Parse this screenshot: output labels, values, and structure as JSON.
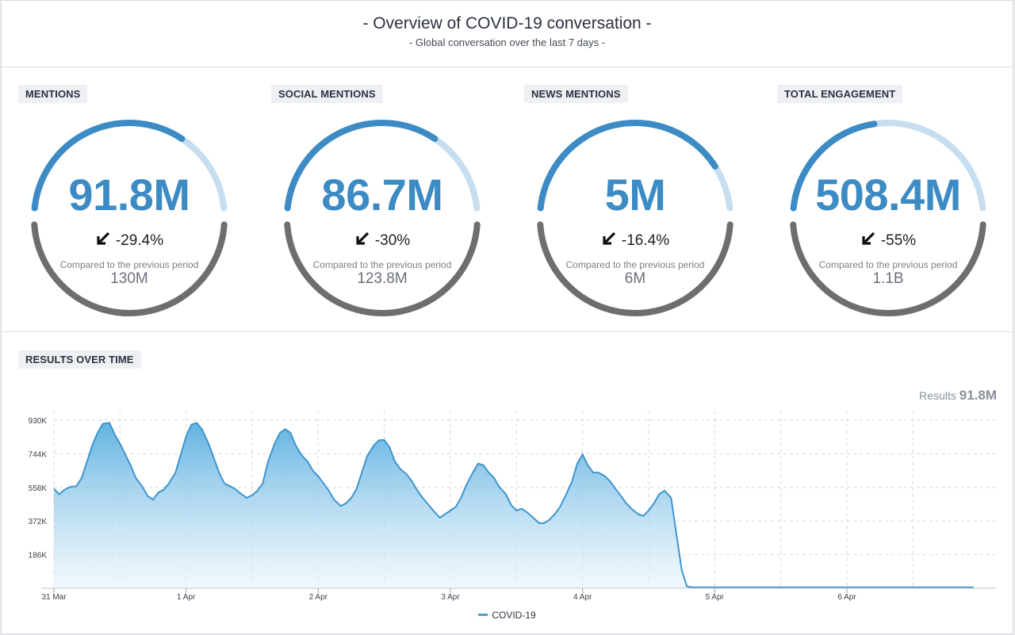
{
  "header": {
    "title": "- Overview of COVID-19 conversation -",
    "subtitle": "- Global conversation over the last 7 days -"
  },
  "kpis": [
    {
      "label": "MENTIONS",
      "value": "91.8M",
      "change": "-29.4%",
      "compare_label": "Compared to the previous period",
      "previous": "130M",
      "fill_fraction": 0.7
    },
    {
      "label": "SOCIAL MENTIONS",
      "value": "86.7M",
      "change": "-30%",
      "compare_label": "Compared to the previous period",
      "previous": "123.8M",
      "fill_fraction": 0.7
    },
    {
      "label": "NEWS MENTIONS",
      "value": "5M",
      "change": "-16.4%",
      "compare_label": "Compared to the previous period",
      "previous": "6M",
      "fill_fraction": 0.84
    },
    {
      "label": "TOTAL ENGAGEMENT",
      "value": "508.4M",
      "change": "-55%",
      "compare_label": "Compared to the previous period",
      "previous": "1.1B",
      "fill_fraction": 0.45
    }
  ],
  "results_section": {
    "label": "RESULTS OVER TIME",
    "total_label": "Results",
    "total_value": "91.8M",
    "legend": "COVID-19"
  },
  "colors": {
    "accent": "#3d8bc4",
    "gauge_track_light": "#c6def0",
    "gauge_lower": "#6e6e6e",
    "area_top": "#5aaee0",
    "area_bottom": "#e8f4fb"
  },
  "icons": {
    "change": "arrow-down-left-icon"
  },
  "chart_data": {
    "type": "area",
    "title": "",
    "xlabel": "",
    "ylabel": "",
    "ylim": [
      0,
      930000
    ],
    "yticks": [
      "186K",
      "372K",
      "558K",
      "744K",
      "930K"
    ],
    "ytick_values": [
      186000,
      372000,
      558000,
      744000,
      930000
    ],
    "xticks": [
      "31 Mar",
      "1 Apr",
      "2 Apr",
      "3 Apr",
      "4 Apr",
      "5 Apr",
      "6 Apr"
    ],
    "xtick_positions": [
      0,
      1,
      2,
      3,
      4,
      5,
      6
    ],
    "grid": true,
    "legend_position": "bottom-center",
    "series": [
      {
        "name": "COVID-19",
        "x": [
          0,
          0.04,
          0.08,
          0.12,
          0.17,
          0.21,
          0.25,
          0.29,
          0.33,
          0.37,
          0.42,
          0.46,
          0.5,
          0.54,
          0.58,
          0.62,
          0.67,
          0.71,
          0.75,
          0.79,
          0.83,
          0.87,
          0.92,
          0.96,
          1,
          1.04,
          1.08,
          1.12,
          1.17,
          1.21,
          1.25,
          1.29,
          1.33,
          1.37,
          1.42,
          1.46,
          1.5,
          1.54,
          1.58,
          1.62,
          1.67,
          1.71,
          1.75,
          1.79,
          1.83,
          1.87,
          1.92,
          1.96,
          2,
          2.04,
          2.08,
          2.12,
          2.17,
          2.21,
          2.25,
          2.29,
          2.33,
          2.37,
          2.42,
          2.46,
          2.5,
          2.54,
          2.58,
          2.62,
          2.67,
          2.71,
          2.75,
          2.79,
          2.83,
          2.87,
          2.92,
          2.96,
          3,
          3.04,
          3.08,
          3.12,
          3.17,
          3.21,
          3.25,
          3.29,
          3.33,
          3.37,
          3.42,
          3.46,
          3.5,
          3.54,
          3.58,
          3.62,
          3.67,
          3.71,
          3.75,
          3.79,
          3.83,
          3.87,
          3.92,
          3.96,
          4,
          4.04,
          4.08,
          4.12,
          4.17,
          4.21,
          4.25,
          4.29,
          4.33,
          4.37,
          4.42,
          4.46,
          4.5,
          4.54,
          4.58,
          4.62,
          4.67,
          4.71,
          4.75,
          4.79,
          4.83,
          4.87,
          4.92,
          4.96,
          5,
          5.04,
          5.08,
          5.12,
          5.17,
          5.21,
          5.25,
          5.29,
          5.33,
          5.37,
          5.42,
          5.46,
          5.5,
          5.54,
          5.58,
          5.62,
          5.67,
          5.71,
          5.75,
          5.79,
          5.83,
          5.87,
          5.92,
          5.96,
          6,
          6.04,
          6.08,
          6.12,
          6.17,
          6.21,
          6.25,
          6.29,
          6.33,
          6.37,
          6.42,
          6.5,
          6.6,
          6.7,
          6.8,
          6.9,
          6.96
        ],
        "values": [
          550000,
          520000,
          545000,
          560000,
          565000,
          610000,
          700000,
          790000,
          860000,
          910000,
          915000,
          850000,
          800000,
          740000,
          680000,
          610000,
          560000,
          510000,
          490000,
          530000,
          545000,
          580000,
          640000,
          740000,
          840000,
          905000,
          915000,
          880000,
          800000,
          720000,
          640000,
          580000,
          565000,
          550000,
          520000,
          500000,
          515000,
          540000,
          580000,
          700000,
          800000,
          860000,
          880000,
          860000,
          790000,
          740000,
          700000,
          650000,
          620000,
          580000,
          540000,
          490000,
          455000,
          470000,
          500000,
          550000,
          640000,
          730000,
          790000,
          820000,
          820000,
          780000,
          700000,
          660000,
          630000,
          590000,
          540000,
          500000,
          465000,
          430000,
          390000,
          410000,
          430000,
          450000,
          500000,
          570000,
          640000,
          690000,
          680000,
          640000,
          610000,
          560000,
          520000,
          460000,
          430000,
          440000,
          420000,
          395000,
          360000,
          360000,
          380000,
          410000,
          450000,
          510000,
          590000,
          690000,
          740000,
          680000,
          640000,
          640000,
          620000,
          590000,
          550000,
          510000,
          470000,
          440000,
          410000,
          400000,
          430000,
          470000,
          520000,
          540000,
          500000,
          300000,
          100000,
          10000,
          5000,
          5000,
          5000,
          5000,
          5000,
          5000,
          5000,
          5000,
          5000,
          5000,
          5000,
          5000,
          5000,
          5000,
          5000,
          5000,
          5000,
          5000,
          5000,
          5000,
          5000,
          5000,
          5000,
          5000,
          5000,
          5000,
          5000,
          5000,
          5000,
          5000,
          5000,
          5000,
          5000,
          5000,
          5000,
          5000,
          5000,
          5000,
          5000,
          5000,
          5000,
          5000,
          5000,
          5000,
          5000
        ]
      }
    ]
  }
}
